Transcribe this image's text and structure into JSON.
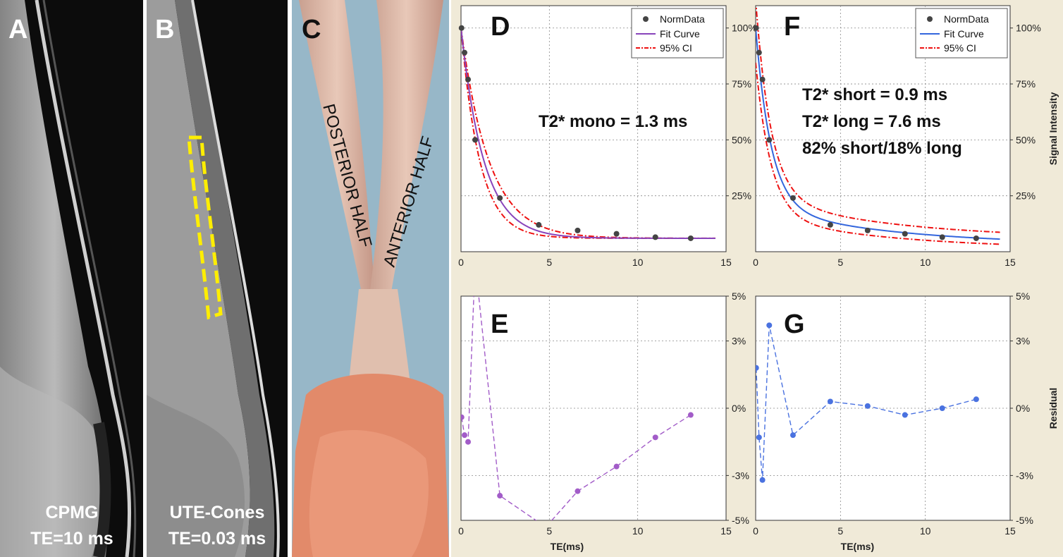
{
  "panels": {
    "A": {
      "letter": "A",
      "caption_line1": "CPMG",
      "caption_line2": "TE=10 ms"
    },
    "B": {
      "letter": "B",
      "caption_line1": "UTE-Cones",
      "caption_line2": "TE=0.03 ms"
    },
    "C": {
      "letter": "C",
      "label_posterior": "POSTERIOR HALF",
      "label_anterior": "ANTERIOR HALF"
    },
    "D": {
      "letter": "D",
      "annotation": "T2* mono = 1.3 ms"
    },
    "E": {
      "letter": "E"
    },
    "F": {
      "letter": "F",
      "annotation_line1": "T2* short = 0.9 ms",
      "annotation_line2": "T2* long = 7.6 ms",
      "annotation_line3": "82% short/18% long"
    },
    "G": {
      "letter": "G"
    }
  },
  "legend": {
    "norm_data": "NormData",
    "fit_curve": "Fit Curve",
    "ci": "95% CI"
  },
  "colors": {
    "mono": "#8844bb",
    "bi": "#3366dd",
    "ci": "#ee1111",
    "dots": "#444444",
    "yellow_roi": "#ffee00",
    "frame": "#f0ead8"
  },
  "chart_data": [
    {
      "id": "D",
      "type": "scatter",
      "xlim": [
        0,
        15
      ],
      "ylim": [
        0,
        110
      ],
      "xticks": [
        "0",
        "5",
        "10",
        "15"
      ],
      "yticks": [
        {
          "v": 25,
          "t": "25%"
        },
        {
          "v": 50,
          "t": "50%"
        },
        {
          "v": 75,
          "t": "75%"
        },
        {
          "v": 100,
          "t": "100%"
        }
      ],
      "ylabel": "",
      "xlabel": "",
      "points": {
        "x": [
          0.03,
          0.2,
          0.4,
          0.8,
          2.2,
          4.4,
          6.6,
          8.8,
          11,
          13
        ],
        "y": [
          100,
          89,
          77,
          50,
          24,
          12,
          9.5,
          8,
          6.5,
          6
        ]
      },
      "fit": {
        "model": "mono",
        "t2": 1.3,
        "amp": 94,
        "offset": 6
      },
      "legend_position": "top-right"
    },
    {
      "id": "F",
      "type": "scatter",
      "xlim": [
        0,
        15
      ],
      "ylim": [
        0,
        110
      ],
      "xticks": [
        "0",
        "5",
        "10",
        "15"
      ],
      "yticks": [
        {
          "v": 25,
          "t": "25%"
        },
        {
          "v": 50,
          "t": "50%"
        },
        {
          "v": 75,
          "t": "75%"
        },
        {
          "v": 100,
          "t": "100%"
        }
      ],
      "ylabel": "Signal Intensity",
      "xlabel": "",
      "points": {
        "x": [
          0.03,
          0.2,
          0.4,
          0.8,
          2.2,
          4.4,
          6.6,
          8.8,
          11,
          13
        ],
        "y": [
          100,
          89,
          77,
          50,
          24,
          12,
          9.5,
          8,
          6.5,
          6
        ]
      },
      "fit": {
        "model": "bi",
        "t2_short": 0.9,
        "t2_long": 7.6,
        "frac_short": 0.82,
        "frac_long": 0.18,
        "offset": 3
      },
      "legend_position": "top-right"
    },
    {
      "id": "E",
      "type": "line",
      "xlim": [
        0,
        15
      ],
      "ylim": [
        -5,
        5
      ],
      "xticks": [
        "0",
        "5",
        "10",
        "15"
      ],
      "yticks": [
        {
          "v": -5,
          "t": "-5%"
        },
        {
          "v": -3,
          "t": "-3%"
        },
        {
          "v": 0,
          "t": "0%"
        },
        {
          "v": 3,
          "t": "3%"
        },
        {
          "v": 5,
          "t": "5%"
        }
      ],
      "xlabel": "TE(ms)",
      "ylabel": "",
      "x": [
        0.03,
        0.2,
        0.4,
        0.8,
        2.2,
        4.8,
        6.6,
        8.8,
        11,
        13
      ],
      "y": [
        -0.4,
        -1.2,
        -1.5,
        6.5,
        -3.9,
        -5.3,
        -3.7,
        -2.6,
        -1.3,
        -0.3
      ]
    },
    {
      "id": "G",
      "type": "line",
      "xlim": [
        0,
        15
      ],
      "ylim": [
        -5,
        5
      ],
      "xticks": [
        "0",
        "5",
        "10",
        "15"
      ],
      "yticks": [
        {
          "v": -5,
          "t": "-5%"
        },
        {
          "v": -3,
          "t": "-3%"
        },
        {
          "v": 0,
          "t": "0%"
        },
        {
          "v": 3,
          "t": "3%"
        },
        {
          "v": 5,
          "t": "5%"
        }
      ],
      "xlabel": "TE(ms)",
      "ylabel": "Residual",
      "x": [
        0.03,
        0.2,
        0.4,
        0.8,
        2.2,
        4.4,
        6.6,
        8.8,
        11,
        13
      ],
      "y": [
        1.8,
        -1.3,
        -3.2,
        3.7,
        -1.2,
        0.3,
        0.1,
        -0.3,
        0.0,
        0.4
      ]
    }
  ]
}
